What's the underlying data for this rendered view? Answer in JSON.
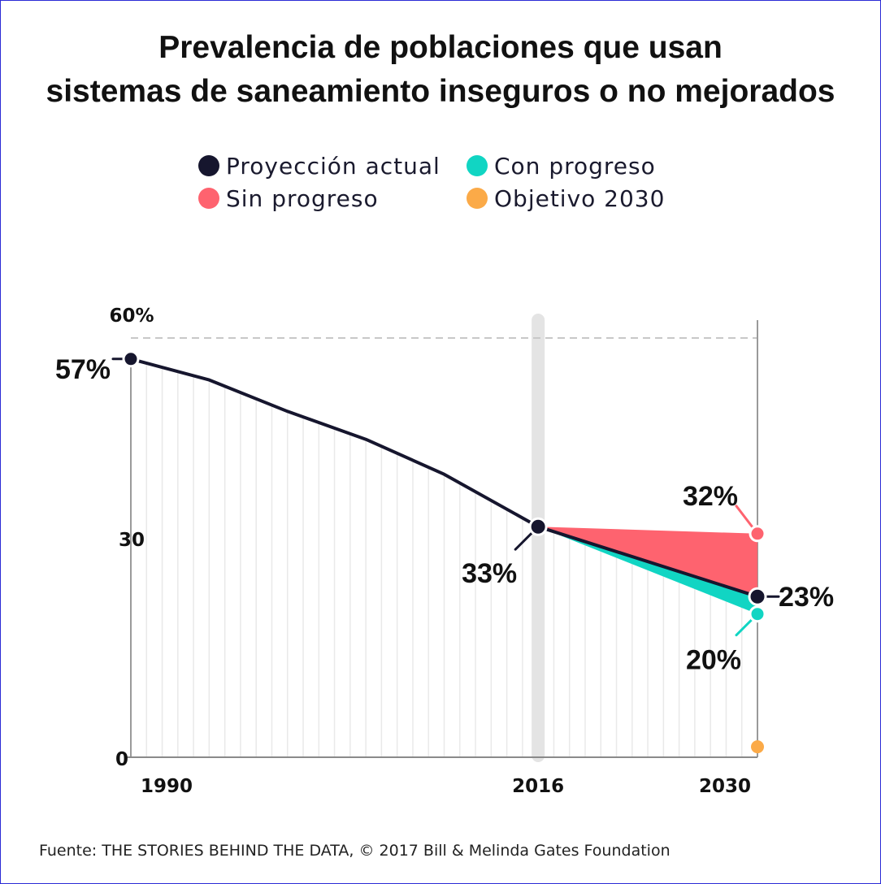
{
  "chart_data": {
    "type": "line",
    "title_lines": [
      "Prevalencia de poblaciones que usan",
      "sistemas de saneamiento inseguros o no mejorados"
    ],
    "xlabel": "",
    "ylabel": "",
    "x_ticks": [
      "1990",
      "2016",
      "2030"
    ],
    "y_ticks": [
      "0",
      "30",
      "60%"
    ],
    "x_range": [
      1990,
      2030
    ],
    "ylim": [
      0,
      60
    ],
    "grid": "vertical yearly lines",
    "legend_position": "top-center",
    "legend": [
      {
        "key": "current",
        "label": "Proyección actual",
        "color": "#16162e"
      },
      {
        "key": "progress",
        "label": "Con progreso",
        "color": "#11d5c3"
      },
      {
        "key": "no_progress",
        "label": "Sin progreso",
        "color": "#fe636f"
      },
      {
        "key": "target",
        "label": "Objetivo 2030",
        "color": "#fbaa48"
      }
    ],
    "series": [
      {
        "key": "current",
        "x": [
          1990,
          1995,
          2000,
          2005,
          2010,
          2016,
          2030
        ],
        "y": [
          57,
          54,
          49.5,
          45.5,
          40.5,
          33,
          23
        ]
      },
      {
        "key": "no_progress",
        "x": [
          2016,
          2030
        ],
        "y": [
          33,
          32
        ]
      },
      {
        "key": "progress",
        "x": [
          2016,
          2030
        ],
        "y": [
          33,
          20.5
        ]
      },
      {
        "key": "target",
        "x": [
          2030
        ],
        "y": [
          1.5
        ]
      }
    ],
    "annotations": [
      {
        "text": "57%",
        "x": 1990,
        "y": 57,
        "color": "#16162e"
      },
      {
        "text": "33%",
        "x": 2016,
        "y": 33,
        "color": "#16162e"
      },
      {
        "text": "32%",
        "x": 2030,
        "y": 32,
        "color": "#fe636f"
      },
      {
        "text": "23%",
        "x": 2030,
        "y": 23,
        "color": "#16162e"
      },
      {
        "text": "20%",
        "x": 2030,
        "y": 20.5,
        "color": "#11d5c3"
      }
    ]
  },
  "source": "Fuente: THE STORIES BEHIND THE DATA, © 2017 Bill & Melinda Gates Foundation"
}
